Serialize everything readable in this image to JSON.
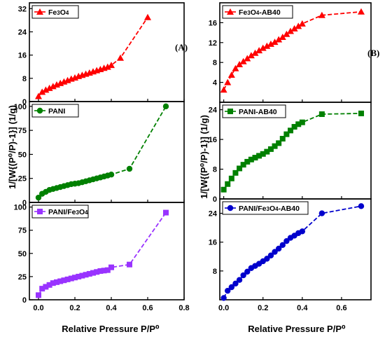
{
  "chart_data": [
    {
      "type": "line",
      "label": "(A)",
      "title": "",
      "xlabel": "Relative Pressure P/P⁰",
      "ylabel": "1/[W{(P⁰/P)-1}] (1/g)",
      "xlim": [
        -0.05,
        0.8
      ],
      "xticks": [
        "0.0",
        "0.2",
        "0.4",
        "0.6",
        "0.8"
      ],
      "grid": false,
      "panels": [
        {
          "series_name": "Fe₃O₄",
          "color": "#ff0000",
          "marker": "triangle",
          "legend": "top-left",
          "ylim": [
            0,
            34
          ],
          "yticks": [
            "0",
            "8",
            "16",
            "24",
            "32"
          ],
          "x": [
            0.0,
            0.02,
            0.04,
            0.06,
            0.08,
            0.1,
            0.12,
            0.14,
            0.16,
            0.18,
            0.2,
            0.22,
            0.24,
            0.26,
            0.28,
            0.3,
            0.32,
            0.34,
            0.36,
            0.38,
            0.4,
            0.45,
            0.6
          ],
          "y": [
            1.8,
            3.3,
            4.0,
            4.6,
            5.2,
            5.8,
            6.3,
            6.8,
            7.3,
            7.8,
            8.2,
            8.7,
            9.1,
            9.5,
            9.9,
            10.3,
            10.7,
            11.1,
            11.5,
            11.9,
            12.5,
            15.0,
            29.0
          ]
        },
        {
          "series_name": "PANI",
          "color": "#008000",
          "marker": "circle",
          "legend": "top-left",
          "ylim": [
            0,
            105
          ],
          "yticks": [
            "0",
            "25",
            "50",
            "75",
            "100"
          ],
          "x": [
            0.0,
            0.02,
            0.04,
            0.06,
            0.08,
            0.1,
            0.12,
            0.14,
            0.16,
            0.18,
            0.2,
            0.22,
            0.24,
            0.26,
            0.28,
            0.3,
            0.32,
            0.34,
            0.36,
            0.38,
            0.4,
            0.5,
            0.7
          ],
          "y": [
            5,
            9,
            11,
            13,
            14,
            15,
            16,
            17,
            18,
            19,
            19.5,
            20,
            21,
            22,
            23,
            24,
            25,
            26,
            27,
            28,
            29,
            35,
            100
          ]
        },
        {
          "series_name": "PANI/Fe₃O₄",
          "color": "#9933ff",
          "marker": "square",
          "legend": "top-left",
          "ylim": [
            0,
            105
          ],
          "yticks": [
            "0",
            "25",
            "50",
            "75",
            "100"
          ],
          "x": [
            0.0,
            0.02,
            0.04,
            0.06,
            0.08,
            0.1,
            0.12,
            0.14,
            0.16,
            0.18,
            0.2,
            0.22,
            0.24,
            0.26,
            0.28,
            0.3,
            0.32,
            0.34,
            0.36,
            0.38,
            0.4,
            0.5,
            0.7
          ],
          "y": [
            5,
            12,
            14,
            16,
            18,
            19,
            20,
            21,
            22,
            23,
            24,
            25,
            26,
            27,
            28,
            29,
            30,
            31,
            31.5,
            32,
            35,
            38,
            94
          ]
        }
      ]
    },
    {
      "type": "line",
      "label": "(B)",
      "title": "",
      "xlabel": "Relative Pressure P/P⁰",
      "ylabel": "1/[W{(P⁰/P)-1}] (1/g)",
      "xlim": [
        -0.02,
        0.75
      ],
      "xticks": [
        "0.0",
        "0.2",
        "0.4",
        "0.6"
      ],
      "grid": false,
      "panels": [
        {
          "series_name": "Fe₃O₄-AB40",
          "color": "#ff0000",
          "marker": "triangle",
          "legend": "top-left",
          "ylim": [
            0,
            20
          ],
          "yticks": [
            "4",
            "8",
            "12",
            "16"
          ],
          "x": [
            0.0,
            0.02,
            0.04,
            0.06,
            0.08,
            0.1,
            0.12,
            0.14,
            0.16,
            0.18,
            0.2,
            0.22,
            0.24,
            0.26,
            0.28,
            0.3,
            0.32,
            0.34,
            0.36,
            0.38,
            0.4,
            0.5,
            0.7
          ],
          "y": [
            2.5,
            4.0,
            5.5,
            6.8,
            7.6,
            8.2,
            8.8,
            9.4,
            9.9,
            10.4,
            10.9,
            11.3,
            11.7,
            12.1,
            12.6,
            13.1,
            13.7,
            14.3,
            14.8,
            15.3,
            15.8,
            17.5,
            18.2
          ]
        },
        {
          "series_name": "PANI-AB40",
          "color": "#008000",
          "marker": "square",
          "legend": "top-left",
          "ylim": [
            0,
            26
          ],
          "yticks": [
            "0",
            "8",
            "16",
            "24"
          ],
          "x": [
            0.0,
            0.02,
            0.04,
            0.06,
            0.08,
            0.1,
            0.12,
            0.14,
            0.16,
            0.18,
            0.2,
            0.22,
            0.24,
            0.26,
            0.28,
            0.3,
            0.32,
            0.34,
            0.36,
            0.38,
            0.4,
            0.5,
            0.7
          ],
          "y": [
            2.5,
            4.0,
            5.5,
            7.0,
            8.2,
            9.2,
            10.0,
            10.6,
            11.1,
            11.6,
            12.1,
            12.7,
            13.4,
            14.2,
            15.0,
            16.2,
            17.4,
            18.4,
            19.4,
            20.1,
            20.6,
            22.8,
            23.0
          ]
        },
        {
          "series_name": "PANI/Fe₃O₄-AB40",
          "color": "#0000cc",
          "marker": "circle",
          "legend": "top-left",
          "ylim": [
            0,
            28
          ],
          "yticks": [
            "8",
            "16",
            "24"
          ],
          "x": [
            0.0,
            0.02,
            0.04,
            0.06,
            0.08,
            0.1,
            0.12,
            0.14,
            0.16,
            0.18,
            0.2,
            0.22,
            0.24,
            0.26,
            0.28,
            0.3,
            0.32,
            0.34,
            0.36,
            0.38,
            0.4,
            0.5,
            0.7
          ],
          "y": [
            0.5,
            2.5,
            3.5,
            4.5,
            5.5,
            6.8,
            7.8,
            8.8,
            9.4,
            10.0,
            10.7,
            11.4,
            12.3,
            13.3,
            14.2,
            15.2,
            16.3,
            17.2,
            17.8,
            18.5,
            19.0,
            24.0,
            26.0
          ]
        }
      ]
    }
  ]
}
